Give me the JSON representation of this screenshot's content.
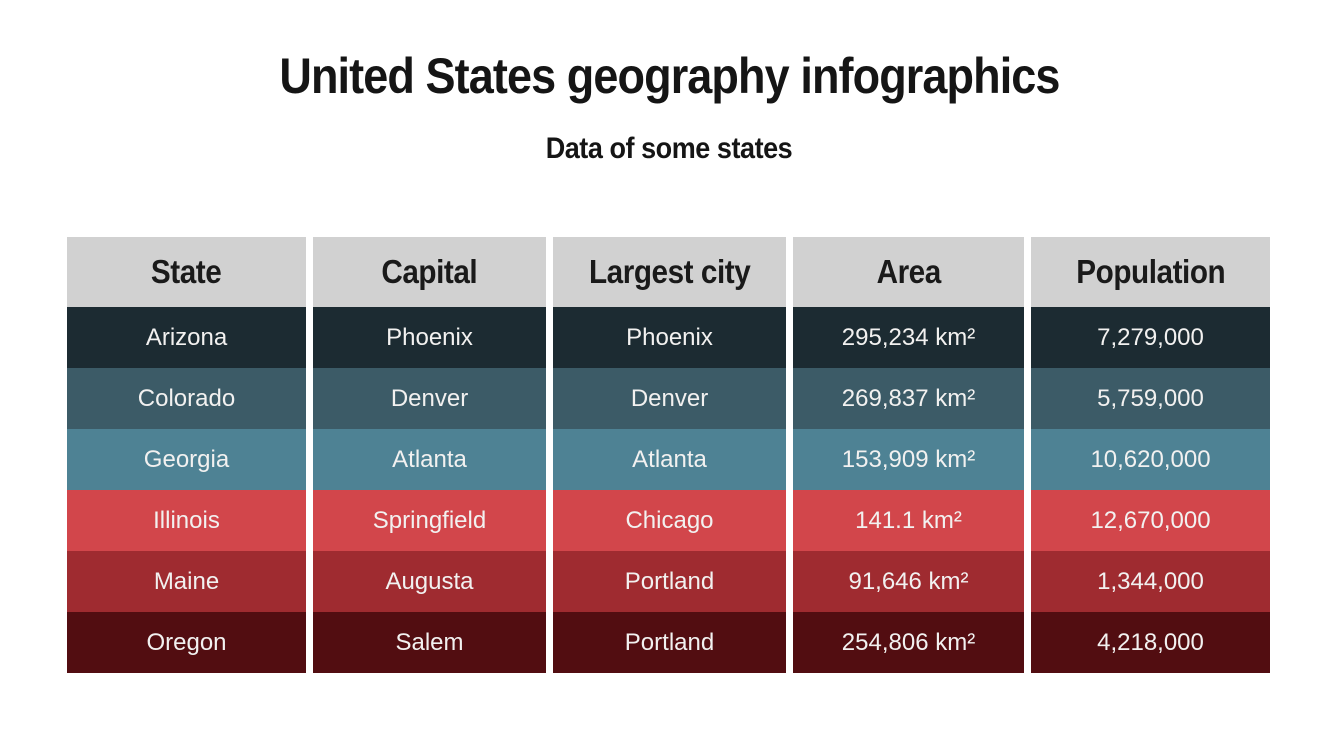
{
  "slide": {
    "title": "United States geography infographics",
    "subtitle": "Data of some states",
    "background": "#ffffff",
    "title_color": "#151515"
  },
  "table": {
    "header_bg": "#d1d1d1",
    "header_text_color": "#1a1a1a",
    "cell_text_color": "#f2f1f0",
    "columns": [
      "State",
      "Capital",
      "Largest city",
      "Area",
      "Population"
    ],
    "rows": [
      {
        "state": "Arizona",
        "capital": "Phoenix",
        "largest_city": "Phoenix",
        "area": "295,234 km²",
        "population": "7,279,000",
        "color": "#1c2b32"
      },
      {
        "state": "Colorado",
        "capital": "Denver",
        "largest_city": "Denver",
        "area": "269,837 km²",
        "population": "5,759,000",
        "color": "#3c5b67"
      },
      {
        "state": "Georgia",
        "capital": "Atlanta",
        "largest_city": "Atlanta",
        "area": "153,909 km²",
        "population": "10,620,000",
        "color": "#4e8294"
      },
      {
        "state": "Illinois",
        "capital": "Springfield",
        "largest_city": "Chicago",
        "area": "141.1 km²",
        "population": "12,670,000",
        "color": "#d2464b"
      },
      {
        "state": "Maine",
        "capital": "Augusta",
        "largest_city": "Portland",
        "area": "91,646 km²",
        "population": "1,344,000",
        "color": "#9f2b30"
      },
      {
        "state": "Oregon",
        "capital": "Salem",
        "largest_city": "Portland",
        "area": "254,806 km²",
        "population": "4,218,000",
        "color": "#520d11"
      }
    ]
  },
  "chart_data": {
    "type": "table",
    "title": "United States geography infographics",
    "subtitle": "Data of some states",
    "columns": [
      "State",
      "Capital",
      "Largest city",
      "Area",
      "Population"
    ],
    "rows": [
      [
        "Arizona",
        "Phoenix",
        "Phoenix",
        "295,234 km²",
        "7,279,000"
      ],
      [
        "Colorado",
        "Denver",
        "Denver",
        "269,837 km²",
        "5,759,000"
      ],
      [
        "Georgia",
        "Atlanta",
        "Atlanta",
        "153,909 km²",
        "10,620,000"
      ],
      [
        "Illinois",
        "Springfield",
        "Chicago",
        "141.1 km²",
        "12,670,000"
      ],
      [
        "Maine",
        "Augusta",
        "Portland",
        "91,646 km²",
        "1,344,000"
      ],
      [
        "Oregon",
        "Salem",
        "Portland",
        "254,806 km²",
        "4,218,000"
      ]
    ],
    "row_colors": [
      "#1c2b32",
      "#3c5b67",
      "#4e8294",
      "#d2464b",
      "#9f2b30",
      "#520d11"
    ],
    "header_bg": "#d1d1d1",
    "layout": {
      "header_row": true,
      "grid": "white column gaps, no row gaps",
      "background": "#ffffff"
    }
  }
}
